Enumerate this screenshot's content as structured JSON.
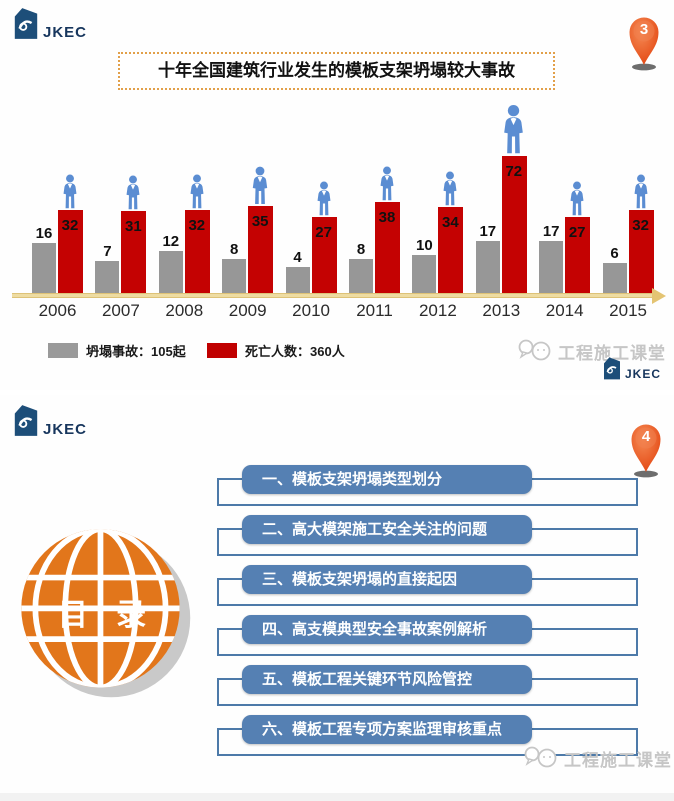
{
  "brand": {
    "name": "JKEC"
  },
  "watermark": {
    "text": "工程施工课堂"
  },
  "slide1": {
    "page_marker": "3",
    "title": "十年全国建筑行业发生的模板支架坍塌较大事故",
    "legend": [
      {
        "label": "坍塌事故：105起",
        "color": "#9a9a9a"
      },
      {
        "label": "死亡人数：360人",
        "color": "#c00000"
      }
    ]
  },
  "chart_data": {
    "type": "bar",
    "title": "十年全国建筑行业发生的模板支架坍塌较大事故",
    "categories": [
      "2006",
      "2007",
      "2008",
      "2009",
      "2010",
      "2011",
      "2012",
      "2013",
      "2014",
      "2015"
    ],
    "series": [
      {
        "name": "坍塌事故",
        "total_label": "坍塌事故：105起",
        "color": "#9a9a9a",
        "values": [
          16,
          7,
          12,
          8,
          4,
          8,
          10,
          17,
          17,
          6
        ]
      },
      {
        "name": "死亡人数",
        "total_label": "死亡人数：360人",
        "color": "#c00000",
        "values": [
          32,
          31,
          32,
          35,
          27,
          38,
          34,
          72,
          27,
          32
        ]
      }
    ],
    "legend_position": "bottom",
    "grid": false,
    "value_labels": true,
    "xlabel": "",
    "ylabel": ""
  },
  "slide2": {
    "page_marker": "4",
    "toc_title": "目 录",
    "items": [
      "一、模板支架坍塌类型划分",
      "二、高大模架施工安全关注的问题",
      "三、模板支架坍塌的直接起因",
      "四、高支模典型安全事故案例解析",
      "五、模板工程关键环节风险管控",
      "六、模板工程专项方案监理审核重点"
    ]
  },
  "colors": {
    "accident_bar": "#979797",
    "death_bar": "#c40202",
    "axis_line": "#eedca2",
    "toc_bar": "#5580b3",
    "toc_bracket": "#4d7aa9",
    "globe": "#e2761b",
    "pin": "#e8541e",
    "title_border": "#e2a04a"
  }
}
